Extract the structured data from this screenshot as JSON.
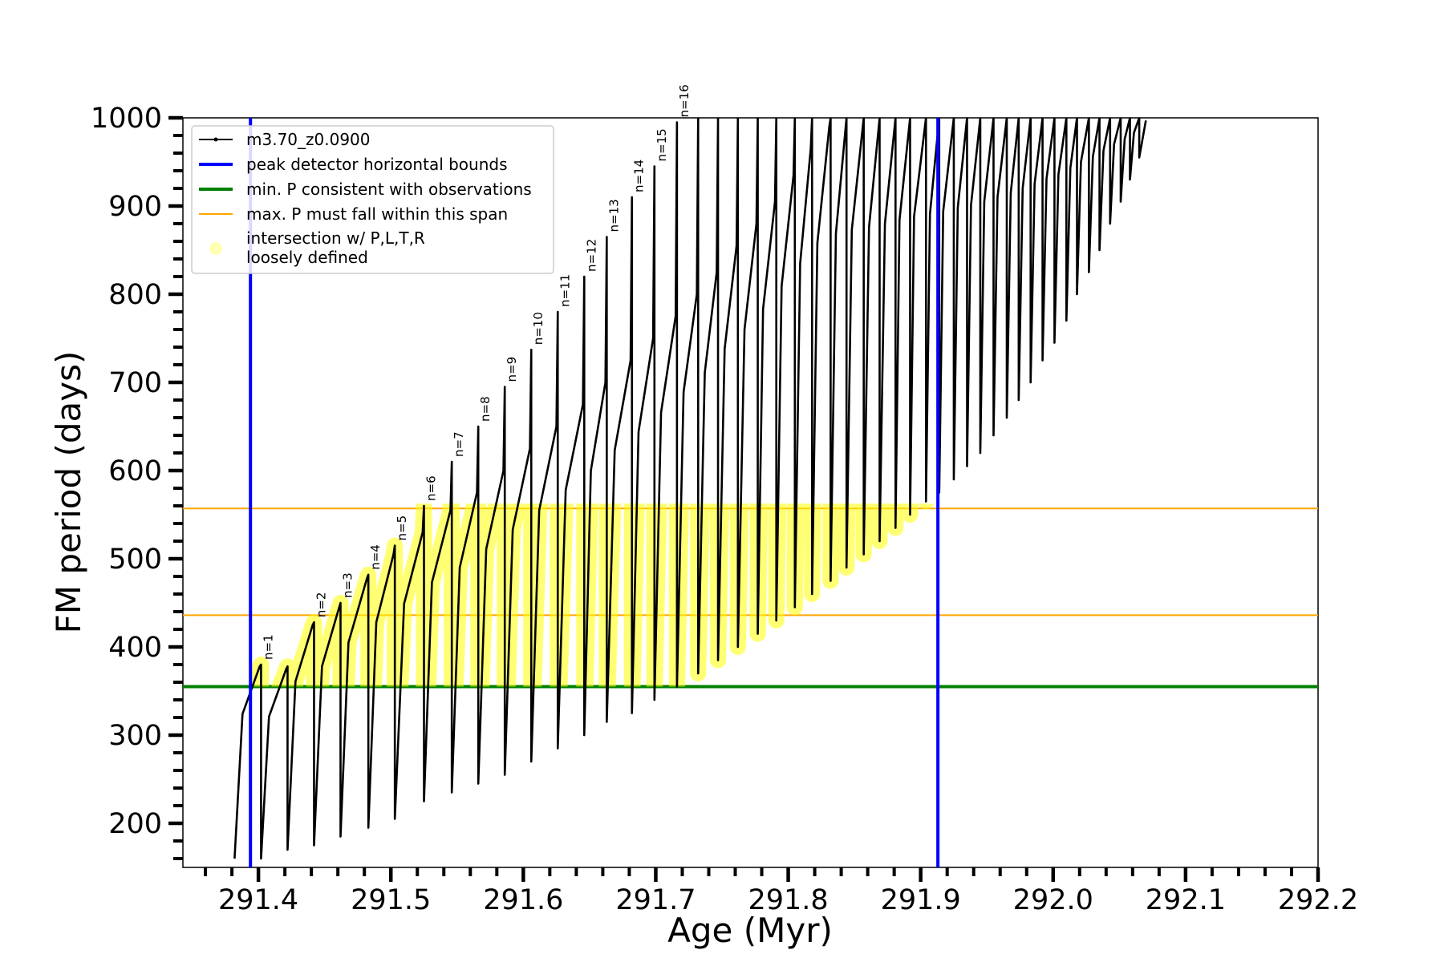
{
  "chart_data": {
    "type": "line",
    "xlabel": "Age (Myr)",
    "ylabel": "FM period (days)",
    "x": [
      291.382,
      291.388,
      291.401,
      291.402,
      291.402,
      291.408,
      291.421,
      291.422,
      291.422,
      291.428,
      291.441,
      291.442,
      291.442,
      291.448,
      291.461,
      291.462,
      291.462,
      291.468,
      291.482,
      291.483,
      291.483,
      291.489,
      291.502,
      291.503,
      291.503,
      291.51,
      291.524,
      291.525,
      291.525,
      291.531,
      291.545,
      291.546,
      291.546,
      291.552,
      291.565,
      291.566,
      291.566,
      291.572,
      291.585,
      291.586,
      291.586,
      291.592,
      291.605,
      291.606,
      291.606,
      291.612,
      291.625,
      291.626,
      291.626,
      291.632,
      291.645,
      291.646,
      291.646,
      291.651,
      291.662,
      291.663,
      291.663,
      291.669,
      291.681,
      291.682,
      291.682,
      291.687,
      291.698,
      291.699,
      291.699,
      291.704,
      291.715,
      291.716,
      291.716,
      291.721,
      291.731,
      291.732,
      291.732,
      291.737,
      291.746,
      291.747,
      291.747,
      291.752,
      291.761,
      291.762,
      291.762,
      291.767,
      291.776,
      291.777,
      291.777,
      291.781,
      291.79,
      291.791,
      291.791,
      291.795,
      291.804,
      291.805,
      291.805,
      291.809,
      291.817,
      291.818,
      291.818,
      291.822,
      291.831,
      291.832,
      291.832,
      291.836,
      291.844,
      291.844,
      291.848,
      291.857,
      291.857,
      291.861,
      291.869,
      291.869,
      291.873,
      291.881,
      291.881,
      291.884,
      291.892,
      291.892,
      291.895,
      291.904,
      291.904,
      291.907,
      291.914,
      291.914,
      291.917,
      291.925,
      291.925,
      291.928,
      291.935,
      291.935,
      291.938,
      291.945,
      291.945,
      291.948,
      291.955,
      291.955,
      291.958,
      291.965,
      291.965,
      291.968,
      291.974,
      291.974,
      291.977,
      291.983,
      291.983,
      291.986,
      291.992,
      291.992,
      291.995,
      292.001,
      292.001,
      292.004,
      292.01,
      292.01,
      292.013,
      292.018,
      292.018,
      292.021,
      292.027,
      292.027,
      292.03,
      292.035,
      292.035,
      292.038,
      292.043,
      292.043,
      292.046,
      292.051,
      292.051,
      292.054,
      292.058,
      292.058,
      292.061,
      292.065,
      292.065,
      292.07
    ],
    "series": [
      {
        "name": "m3.70_z0.0900",
        "color": "#000000",
        "values": [
          160,
          324,
          378,
          380,
          160,
          321,
          375,
          378,
          170,
          361,
          425,
          428,
          175,
          378,
          445,
          450,
          185,
          405,
          478,
          482,
          195,
          428,
          505,
          515,
          205,
          449,
          530,
          560,
          225,
          473,
          555,
          610,
          235,
          490,
          575,
          650,
          245,
          511,
          600,
          695,
          255,
          533,
          625,
          737,
          270,
          555,
          650,
          780,
          285,
          578,
          675,
          820,
          300,
          600,
          700,
          865,
          315,
          623,
          725,
          910,
          325,
          644,
          750,
          945,
          340,
          666,
          775,
          995,
          355,
          689,
          800,
          1000,
          370,
          711,
          825,
          1000,
          385,
          738,
          855,
          1000,
          400,
          760,
          880,
          1000,
          415,
          783,
          905,
          1000,
          430,
          809,
          935,
          1000,
          445,
          835,
          965,
          1000,
          460,
          858,
          990,
          1000,
          475,
          869,
          1000,
          490,
          873,
          1000,
          505,
          876,
          1000,
          520,
          880,
          1000,
          535,
          884,
          1000,
          550,
          888,
          1000,
          565,
          891,
          1000,
          575,
          894,
          1000,
          590,
          898,
          1000,
          605,
          901,
          1000,
          620,
          905,
          1000,
          640,
          910,
          1000,
          660,
          915,
          1000,
          680,
          920,
          1000,
          700,
          925,
          1000,
          725,
          931,
          1000,
          745,
          936,
          1000,
          770,
          943,
          1000,
          800,
          950,
          1000,
          825,
          956,
          1000,
          850,
          963,
          1000,
          880,
          970,
          1000,
          905,
          976,
          1000,
          930,
          983,
          1000,
          955,
          997
        ]
      }
    ],
    "vlines": {
      "name": "peak detector horizontal bounds",
      "color": "#0000ff",
      "values": [
        291.394,
        291.913
      ]
    },
    "hlines": [
      {
        "name": "min. P consistent with observations",
        "color": "#008000",
        "values": [
          355
        ]
      },
      {
        "name": "max. P must fall within this span",
        "color": "#ffa500",
        "values": [
          557,
          436
        ]
      }
    ],
    "highlight": {
      "label_lines": [
        "intersection w/ P,L,T,R",
        "loosely defined"
      ],
      "color": "#ffff00"
    },
    "annotations": [
      {
        "text": "n=1",
        "x": 291.402,
        "y": 380
      },
      {
        "text": "n=2",
        "x": 291.442,
        "y": 428
      },
      {
        "text": "n=3",
        "x": 291.462,
        "y": 450
      },
      {
        "text": "n=4",
        "x": 291.483,
        "y": 482
      },
      {
        "text": "n=5",
        "x": 291.503,
        "y": 515
      },
      {
        "text": "n=6",
        "x": 291.525,
        "y": 560
      },
      {
        "text": "n=7",
        "x": 291.546,
        "y": 610
      },
      {
        "text": "n=8",
        "x": 291.566,
        "y": 650
      },
      {
        "text": "n=9",
        "x": 291.586,
        "y": 695
      },
      {
        "text": "n=10",
        "x": 291.606,
        "y": 737
      },
      {
        "text": "n=11",
        "x": 291.626,
        "y": 780
      },
      {
        "text": "n=12",
        "x": 291.646,
        "y": 820
      },
      {
        "text": "n=13",
        "x": 291.663,
        "y": 865
      },
      {
        "text": "n=14",
        "x": 291.682,
        "y": 910
      },
      {
        "text": "n=15",
        "x": 291.699,
        "y": 945
      },
      {
        "text": "n=16",
        "x": 291.716,
        "y": 995
      }
    ],
    "xlim": [
      291.343,
      292.2
    ],
    "ylim": [
      150,
      1000
    ],
    "xticks": [
      291.4,
      291.5,
      291.6,
      291.7,
      291.8,
      291.9,
      {
        "value": 292,
        "label": "292.0"
      },
      292.1,
      292.2
    ],
    "yticks": [
      200,
      300,
      400,
      500,
      600,
      700,
      800,
      900,
      1000
    ],
    "xminorticks": [
      291.36,
      291.38,
      291.42,
      291.44,
      291.46,
      291.48,
      291.52,
      291.54,
      291.56,
      291.58,
      291.62,
      291.64,
      291.66,
      291.68,
      291.72,
      291.74,
      291.76,
      291.78,
      291.82,
      291.84,
      291.86,
      291.88,
      291.92,
      291.94,
      291.96,
      291.98,
      292.02,
      292.04,
      292.06,
      292.08,
      292.12,
      292.14,
      292.16,
      292.18
    ],
    "yminorticks": [
      160,
      180,
      220,
      240,
      260,
      280,
      320,
      340,
      360,
      380,
      420,
      440,
      460,
      480,
      520,
      540,
      560,
      580,
      620,
      640,
      660,
      680,
      720,
      740,
      760,
      780,
      820,
      840,
      860,
      880,
      920,
      940,
      960,
      980
    ],
    "legend": "upper left"
  }
}
